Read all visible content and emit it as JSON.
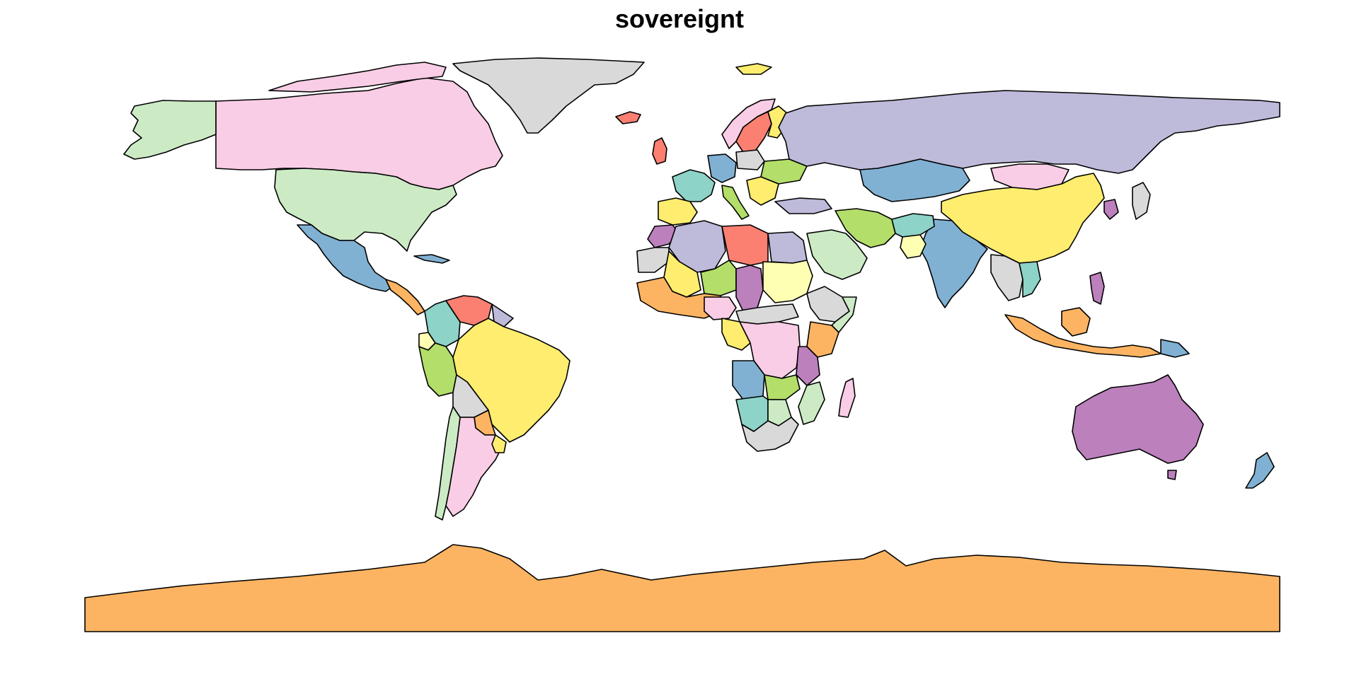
{
  "map": {
    "title": "sovereignt",
    "palette": {
      "pink": "#F9CDE5",
      "light_green": "#CCEBC5",
      "light_gray": "#D9D9D9",
      "lavender": "#BEBADA",
      "blue": "#80B1D3",
      "yellow": "#FFED6F",
      "salmon": "#FB8072",
      "orange": "#FDB462",
      "purple": "#BC80BD",
      "teal": "#8DD3C7",
      "lime": "#B3DE69",
      "cream": "#FFFFB3",
      "border": "#000000"
    }
  }
}
